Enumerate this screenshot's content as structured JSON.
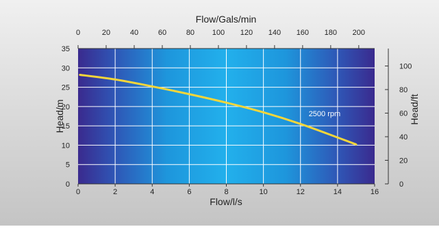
{
  "chart_data": {
    "type": "line",
    "xlabel": "Flow/l/s",
    "ylabel": "Head/m",
    "x_top_label": "Flow/Gals/min",
    "y_right_label": "Head/ft",
    "xlim": [
      0,
      16
    ],
    "ylim": [
      0,
      35
    ],
    "x_ticks": [
      0,
      2,
      4,
      6,
      8,
      10,
      12,
      14,
      16
    ],
    "y_ticks": [
      0,
      5,
      10,
      15,
      20,
      25,
      30,
      35
    ],
    "x_top_lim": [
      0,
      211.3
    ],
    "x_top_ticks": [
      0,
      20,
      40,
      60,
      80,
      100,
      120,
      140,
      160,
      180,
      200
    ],
    "y_right_lim": [
      0,
      114.8
    ],
    "y_right_ticks": [
      0,
      20,
      40,
      60,
      80,
      100
    ],
    "grid": true,
    "series": [
      {
        "name": "2500 rpm",
        "x": [
          0.1,
          2,
          4,
          6,
          8,
          10,
          12,
          14,
          15
        ],
        "y": [
          28.2,
          27,
          25.2,
          23.2,
          21,
          18.5,
          15.5,
          12,
          10.2
        ]
      }
    ],
    "annotations": [
      {
        "text": "2500 rpm",
        "x": 13.3,
        "y": 17.5
      }
    ],
    "colors": {
      "background": "#d9d9d9",
      "plot_edge": "#3a2a8e",
      "plot_center": "#1fa8e6",
      "curve": "#f5d63a",
      "grid": "#ffffff"
    }
  }
}
